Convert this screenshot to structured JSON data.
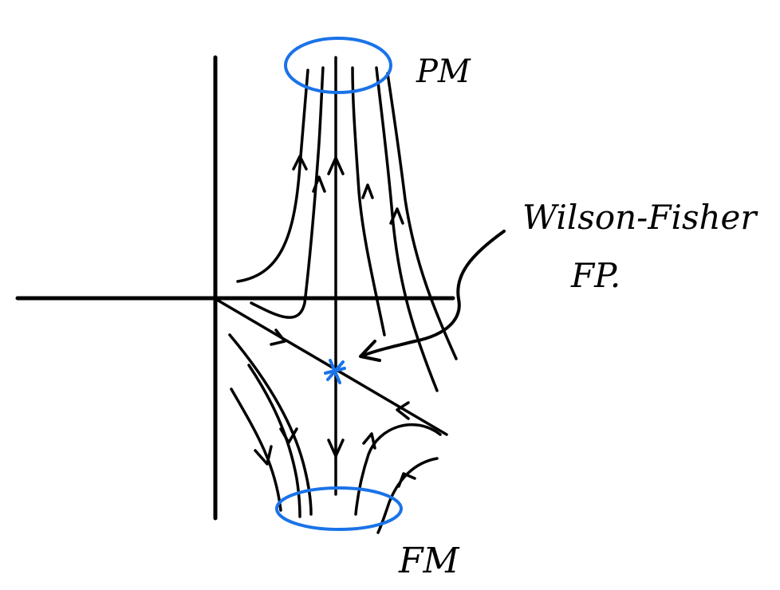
{
  "labels": {
    "pm": "PM",
    "fm": "FM",
    "wilson_fisher_line1": "Wilson-Fisher",
    "wilson_fisher_line2": "FP."
  },
  "colors": {
    "ink": "#000000",
    "highlight": "#1a73e8"
  },
  "icons": {
    "fixed_point_marker": "asterisk"
  }
}
